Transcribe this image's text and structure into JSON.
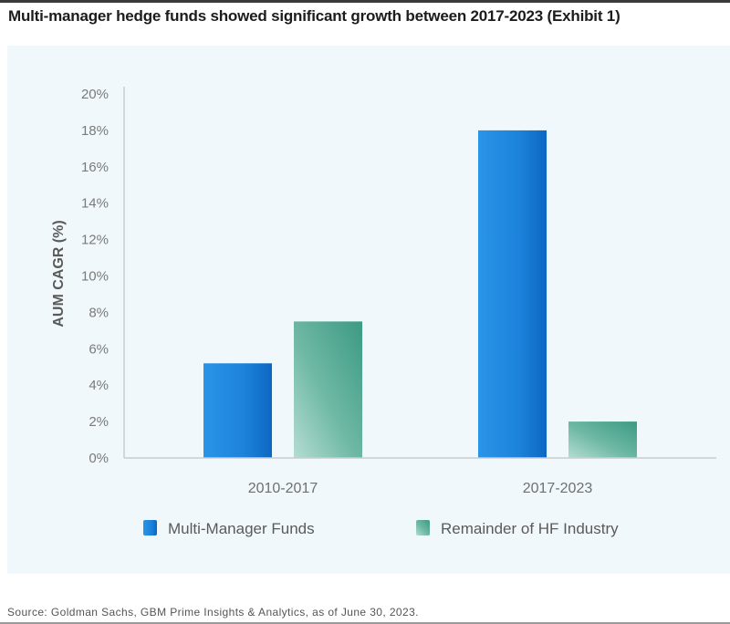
{
  "title": "Multi-manager hedge funds showed significant growth between 2017-2023 (Exhibit 1)",
  "source": "Source: Goldman Sachs, GBM Prime Insights & Analytics, as of June 30, 2023.",
  "colors": {
    "multi_manager": "#1a7fd6",
    "remainder": "#3f9f88",
    "panel_bg": "#f1f8fc",
    "axis": "#c9ccd1",
    "tick_text": "#7a7a7a"
  },
  "chart_data": {
    "type": "bar",
    "title": "Multi-manager hedge funds showed significant growth between 2017-2023 (Exhibit 1)",
    "xlabel": "",
    "ylabel": "AUM CAGR (%)",
    "ylim": [
      0,
      20
    ],
    "yticks": [
      0,
      2,
      4,
      6,
      8,
      10,
      12,
      14,
      16,
      18,
      20
    ],
    "ytick_labels": [
      "0%",
      "2%",
      "4%",
      "6%",
      "8%",
      "10%",
      "12%",
      "14%",
      "16%",
      "18%",
      "20%"
    ],
    "categories": [
      "2010-2017",
      "2017-2023"
    ],
    "series": [
      {
        "name": "Multi-Manager Funds",
        "values": [
          5.2,
          18.0
        ]
      },
      {
        "name": "Remainder of HF Industry",
        "values": [
          7.5,
          2.0
        ]
      }
    ],
    "legend_position": "bottom",
    "grid": false
  }
}
